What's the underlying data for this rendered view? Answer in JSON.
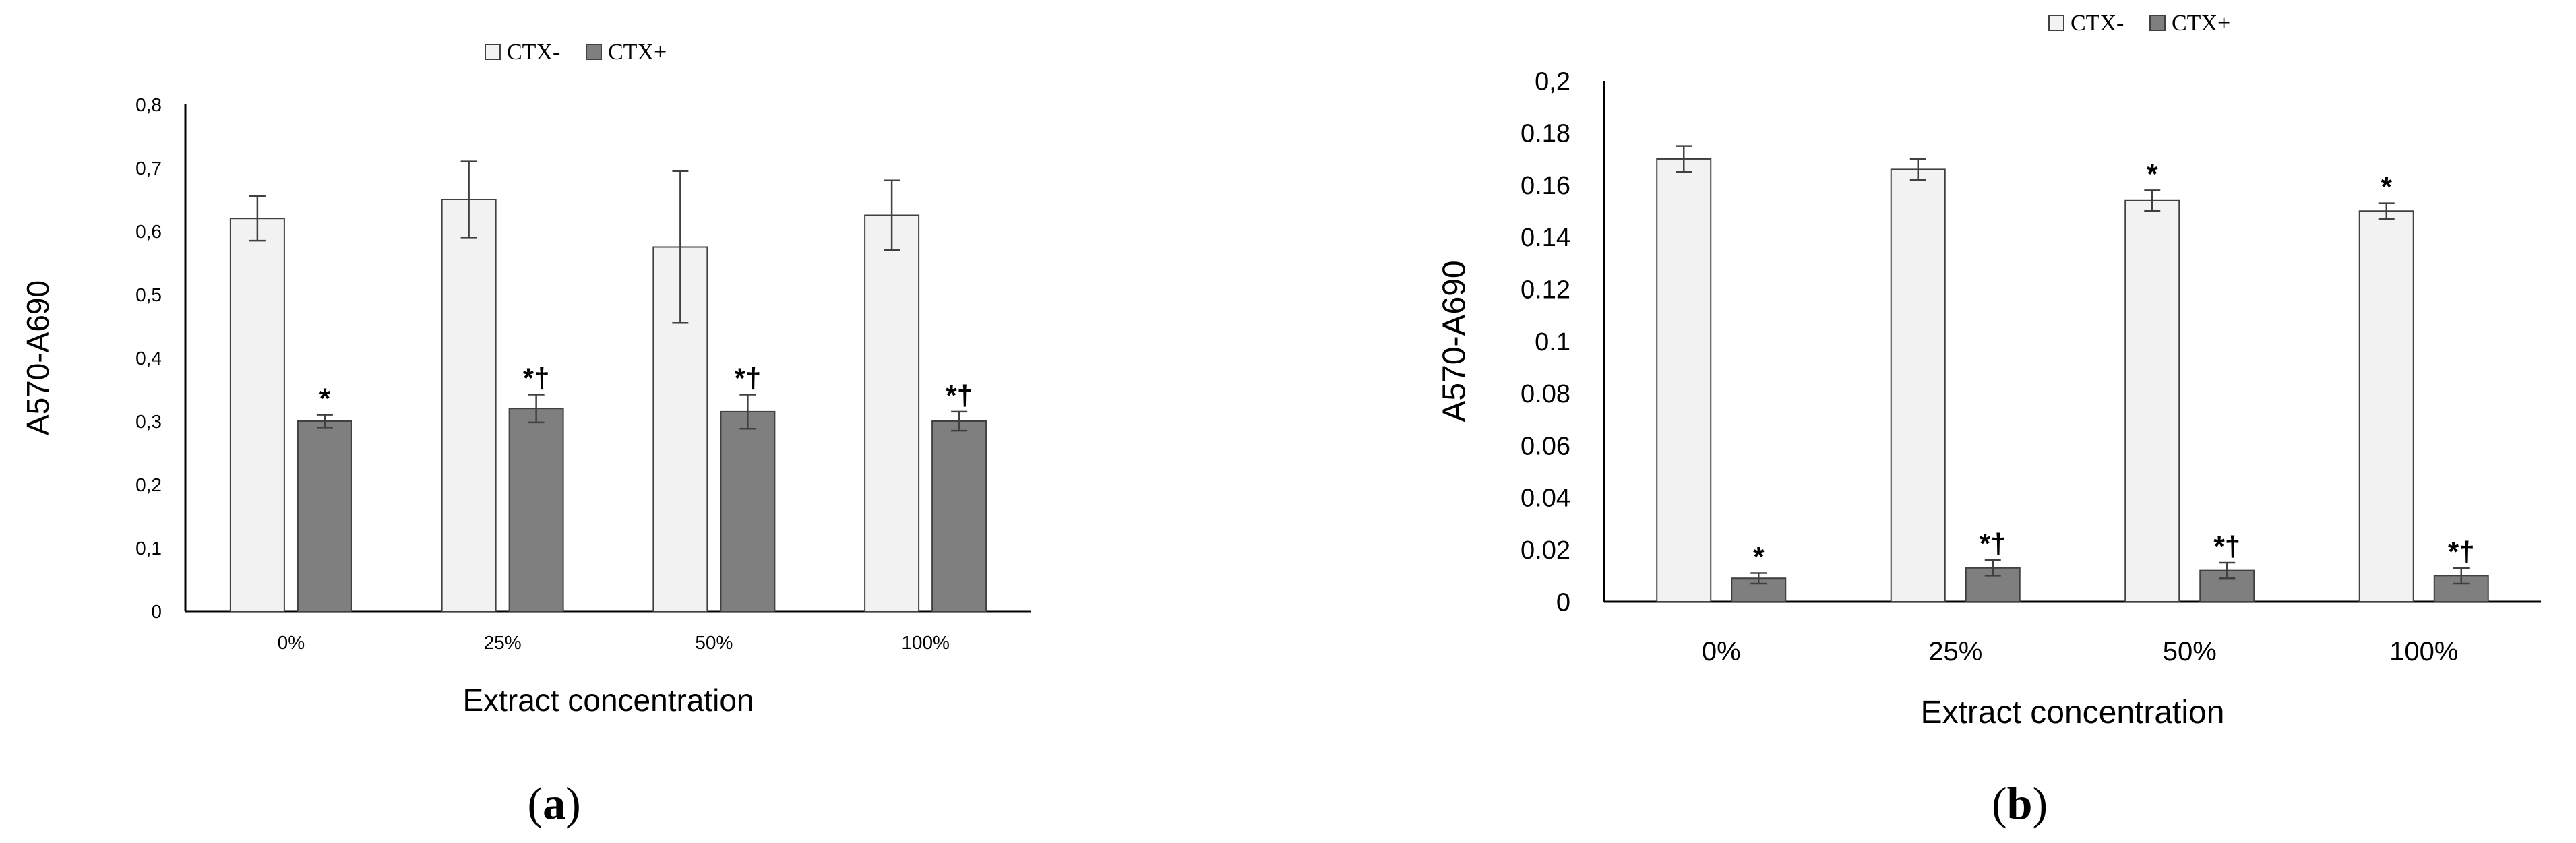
{
  "chart_data": [
    {
      "panel_label": "(a)",
      "type": "bar",
      "categories": [
        "0%",
        "25%",
        "50%",
        "100%"
      ],
      "xlabel": "Extract concentration",
      "ylabel": "A570-A690",
      "ylim": [
        0,
        0.8
      ],
      "yticks": [
        "0",
        "0,1",
        "0,2",
        "0,3",
        "0,4",
        "0,5",
        "0,6",
        "0,7",
        "0,8"
      ],
      "grid": false,
      "legend_position": "top",
      "series": [
        {
          "name": "CTX-",
          "color": "#f2f2f2",
          "values": [
            0.62,
            0.65,
            0.575,
            0.625
          ],
          "errors": [
            0.035,
            0.06,
            0.12,
            0.055
          ],
          "annotations": [
            "",
            "",
            "",
            ""
          ]
        },
        {
          "name": "CTX+",
          "color": "#7f7f7f",
          "values": [
            0.3,
            0.32,
            0.315,
            0.3
          ],
          "errors": [
            0.01,
            0.022,
            0.027,
            0.015
          ],
          "annotations": [
            "*",
            "*†",
            "*†",
            "*†"
          ]
        }
      ]
    },
    {
      "panel_label": "(b)",
      "type": "bar",
      "categories": [
        "0%",
        "25%",
        "50%",
        "100%"
      ],
      "xlabel": "Extract concentration",
      "ylabel": "A570-A690",
      "ylim": [
        0,
        0.2
      ],
      "yticks": [
        "0",
        "0.02",
        "0.04",
        "0.06",
        "0.08",
        "0.1",
        "0.12",
        "0.14",
        "0.16",
        "0.18",
        "0,2"
      ],
      "grid": false,
      "legend_position": "top",
      "series": [
        {
          "name": "CTX-",
          "color": "#f2f2f2",
          "values": [
            0.17,
            0.166,
            0.154,
            0.15
          ],
          "errors": [
            0.005,
            0.004,
            0.004,
            0.003
          ],
          "annotations": [
            "",
            "",
            "*",
            "*"
          ]
        },
        {
          "name": "CTX+",
          "color": "#7f7f7f",
          "values": [
            0.009,
            0.013,
            0.012,
            0.01
          ],
          "errors": [
            0.002,
            0.003,
            0.003,
            0.003
          ],
          "annotations": [
            "*",
            "*†",
            "*†",
            "*†"
          ]
        }
      ]
    }
  ]
}
